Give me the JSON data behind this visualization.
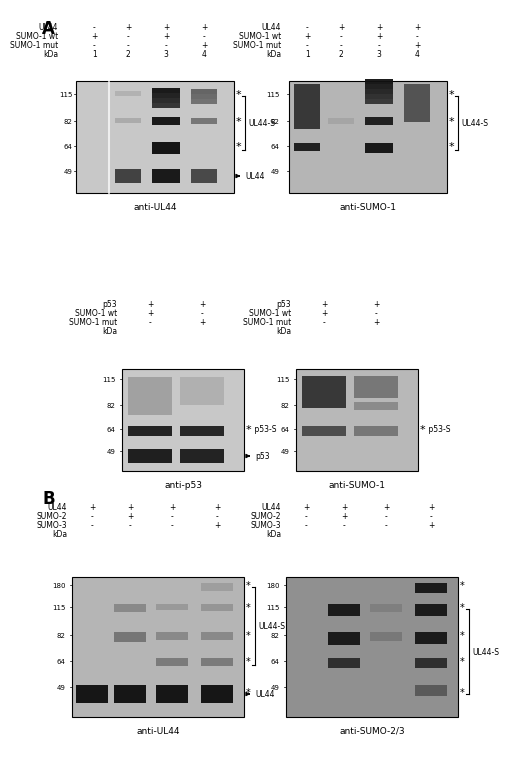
{
  "panel_A_label": "A",
  "panel_B_label": "B",
  "bg_color": "#ffffff",
  "blot_bg_light": "#c8c8c8",
  "blot_bg_mid": "#b0b0b0",
  "blot_bg_dark": "#888888",
  "dark_band": "#111111",
  "mid_band": "#555555",
  "light_band": "#aaaaaa",
  "text_color": "#000000",
  "panel_A_top_left": {
    "title": "anti-UL44",
    "row_labels": [
      "UL44",
      "SUMO-1 wt",
      "SUMO-1 mut"
    ],
    "row1": [
      "-",
      "+",
      "+",
      "+"
    ],
    "row2": [
      "+",
      "-",
      "+",
      "-"
    ],
    "row3": [
      "-",
      "-",
      "-",
      "+"
    ],
    "lane_nums": [
      "1",
      "2",
      "3",
      "4"
    ],
    "kda_marks": [
      "115",
      "82",
      "64",
      "49"
    ],
    "bracket_label": "UL44-S",
    "arrow_label": "UL44",
    "stars": 3
  },
  "panel_A_top_right": {
    "title": "anti-SUMO-1",
    "row_labels": [
      "UL44",
      "SUMO-1 wt",
      "SUMO-1 mut"
    ],
    "row1": [
      "-",
      "+",
      "+",
      "+"
    ],
    "row2": [
      "+",
      "-",
      "+",
      "-"
    ],
    "row3": [
      "-",
      "-",
      "-",
      "+"
    ],
    "lane_nums": [
      "1",
      "2",
      "3",
      "4"
    ],
    "kda_marks": [
      "115",
      "82",
      "64",
      "49"
    ],
    "bracket_label": "UL44-S",
    "stars": 3
  },
  "panel_A_bot_left": {
    "title": "anti-p53",
    "row_labels": [
      "p53",
      "SUMO-1 wt",
      "SUMO-1 mut"
    ],
    "row1": [
      "+",
      "+"
    ],
    "row2": [
      "+",
      "-"
    ],
    "row3": [
      "-",
      "+"
    ],
    "kda_marks": [
      "115",
      "82",
      "64",
      "49"
    ],
    "star_label": "p53-S",
    "arrow_label": "p53"
  },
  "panel_A_bot_right": {
    "title": "anti-SUMO-1",
    "row_labels": [
      "p53",
      "SUMO-1 wt",
      "SUMO-1 mut"
    ],
    "row1": [
      "+",
      "+"
    ],
    "row2": [
      "+",
      "-"
    ],
    "row3": [
      "-",
      "+"
    ],
    "kda_marks": [
      "115",
      "82",
      "64",
      "49"
    ],
    "star_label": "p53-S"
  },
  "panel_B_left": {
    "title": "anti-UL44",
    "row_labels": [
      "UL44",
      "SUMO-2",
      "SUMO-3"
    ],
    "row1": [
      "+",
      "+",
      "+",
      "+"
    ],
    "row2": [
      "-",
      "+",
      "-",
      "-"
    ],
    "row3": [
      "-",
      "-",
      "-",
      "+"
    ],
    "kda_marks": [
      "180",
      "115",
      "82",
      "64",
      "49"
    ],
    "bracket_label": "UL44-S",
    "arrow_label": "UL44",
    "stars": 5
  },
  "panel_B_right": {
    "title": "anti-SUMO-2/3",
    "row_labels": [
      "UL44",
      "SUMO-2",
      "SUMO-3"
    ],
    "row1": [
      "+",
      "+",
      "+",
      "+"
    ],
    "row2": [
      "-",
      "+",
      "-",
      "-"
    ],
    "row3": [
      "-",
      "-",
      "-",
      "+"
    ],
    "kda_marks": [
      "180",
      "115",
      "82",
      "64",
      "49"
    ],
    "bracket_label": "UL44-S",
    "stars": 5
  }
}
